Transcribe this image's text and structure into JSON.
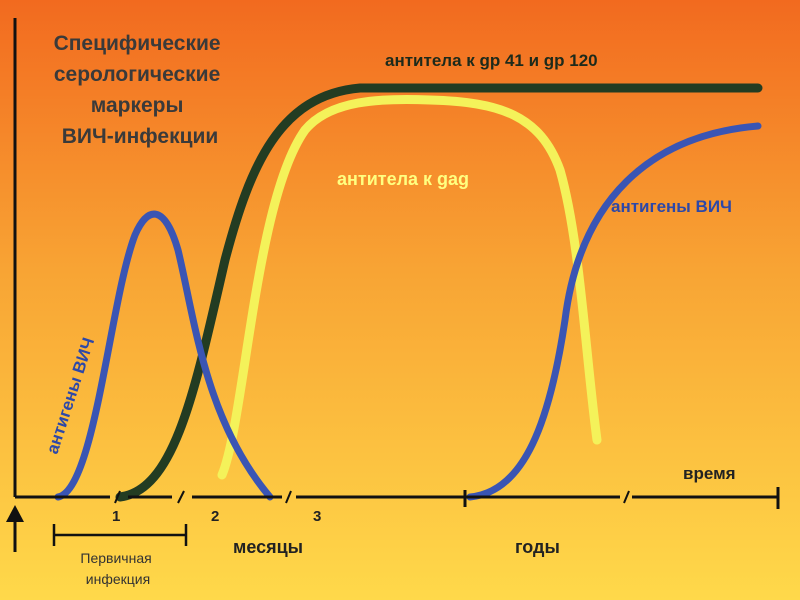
{
  "title_lines": [
    "Специфические",
    "серологические",
    "маркеры",
    "ВИЧ-инфекции"
  ],
  "axis": {
    "time_label": "время",
    "months_label": "месяцы",
    "years_label": "годы",
    "month_ticks": [
      "1",
      "2",
      "3"
    ],
    "primary_infection_lines": [
      "Первичная",
      "инфекция"
    ]
  },
  "colors": {
    "bg_top": "#f26a1f",
    "bg_bottom": "#ffd94a",
    "antigen": "#3a55b4",
    "gag": "#f4f25a",
    "gp": "#233c22",
    "axis": "#111111"
  },
  "chart_data": {
    "type": "line",
    "xlabel": "время",
    "ylabel": "",
    "series": [
      {
        "name": "антитела к gp 41 и gp 120",
        "color_key": "gp",
        "label": "антитела к gp 41 и gp 120"
      },
      {
        "name": "антитела к gag",
        "color_key": "gag",
        "label": "антитела к gag"
      },
      {
        "name": "антигены ВИЧ",
        "color_key": "antigen",
        "label": "антигены ВИЧ",
        "label_rotated": "антигены ВИЧ"
      }
    ]
  }
}
